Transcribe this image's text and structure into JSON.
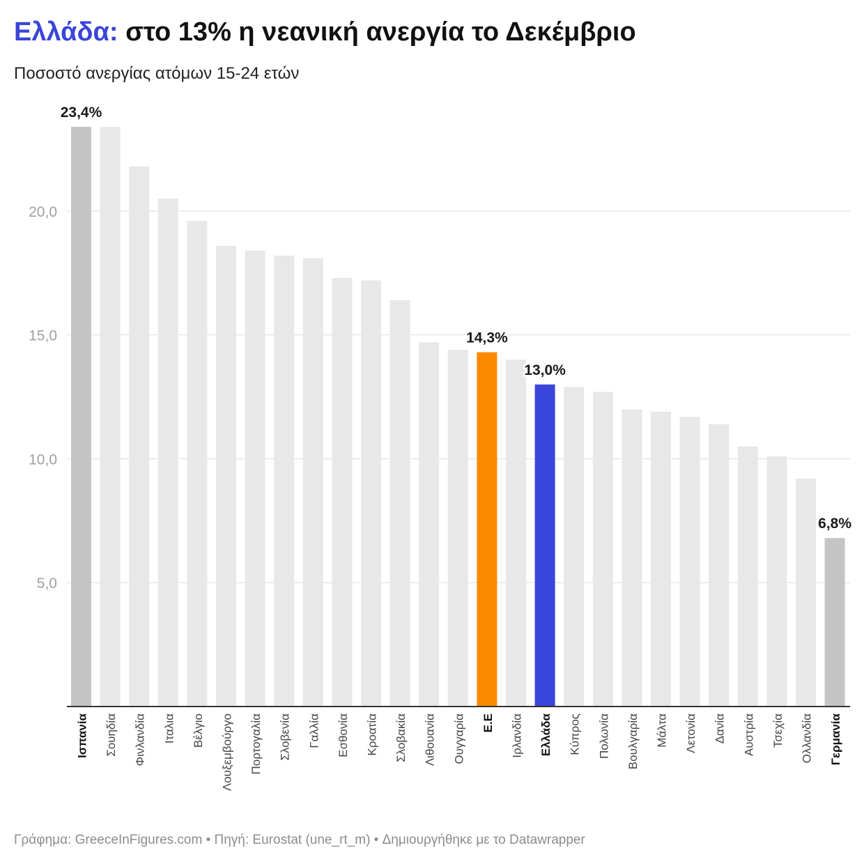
{
  "header": {
    "title_highlight": "Ελλάδα:",
    "title_rest": " στο 13% η νεανική ανεργία το Δεκέμβριο",
    "subtitle": "Ποσοστό ανεργίας ατόμων 15-24 ετών"
  },
  "footer": {
    "text": "Γράφημα: GreeceInFigures.com • Πηγή: Eurostat (une_rt_m) • Δημιουργήθηκε με το Datawrapper"
  },
  "colors": {
    "default_bar": "#e8e8e8",
    "extreme_bar": "#c4c4c4",
    "eu_bar": "#fb8a00",
    "greece_bar": "#3a45da",
    "title_highlight": "#3a45da"
  },
  "chart_data": {
    "type": "bar",
    "categories": [
      "Ισπανία",
      "Σουηδία",
      "Φινλανδία",
      "Ιταλια",
      "Βέλγιο",
      "Λουξεμβούργο",
      "Πορτογαλία",
      "Σλοβενία",
      "Γαλλία",
      "Εσθονία",
      "Κροατία",
      "Σλοβακία",
      "Λιθουανία",
      "Ουγγαρία",
      "Ε.Ε",
      "Ιρλανδία",
      "Ελλάδα",
      "Κύπρος",
      "Πολωνία",
      "Βουλγαρία",
      "Μάλτα",
      "Λετονία",
      "Δανία",
      "Αυστρία",
      "Τσεχία",
      "Ολλανδία",
      "Γερμανία"
    ],
    "values": [
      23.4,
      23.4,
      21.8,
      20.5,
      19.6,
      18.6,
      18.4,
      18.2,
      18.1,
      17.3,
      17.2,
      16.4,
      14.7,
      14.4,
      14.3,
      14.0,
      13.0,
      12.9,
      12.7,
      12.0,
      11.9,
      11.7,
      11.4,
      10.5,
      10.1,
      9.2,
      6.8
    ],
    "highlights": {
      "Ισπανία": "extreme_bar",
      "Ε.Ε": "eu_bar",
      "Ελλάδα": "greece_bar",
      "Γερμανία": "extreme_bar"
    },
    "bold_categories": [
      "Ισπανία",
      "Ε.Ε",
      "Ελλάδα",
      "Γερμανία"
    ],
    "data_labels": {
      "Ισπανία": "23,4%",
      "Ε.Ε": "14,3%",
      "Ελλάδα": "13,0%",
      "Γερμανία": "6,8%"
    },
    "yticks": [
      5,
      10,
      15,
      20
    ],
    "ytick_labels": [
      "5,0",
      "10,0",
      "15,0",
      "20,0"
    ],
    "ylim": [
      0,
      23.4
    ],
    "grid": true
  }
}
